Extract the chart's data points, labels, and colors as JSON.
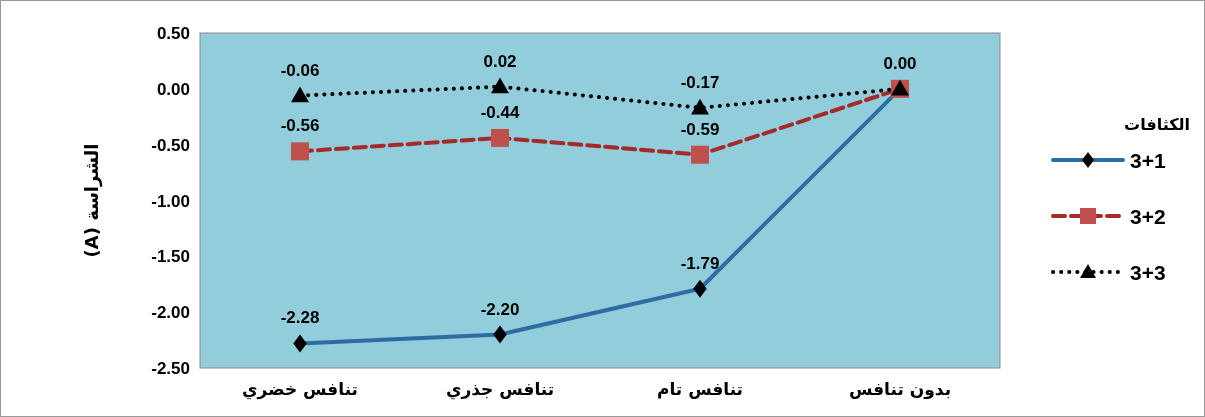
{
  "chart_data": {
    "type": "line",
    "ylabel": "الشراسة (A)",
    "legend_title": "الكثافات",
    "categories": [
      "تنافس خضري",
      "تنافس جذري",
      "تنافس تام",
      "بدون تنافس"
    ],
    "series": [
      {
        "name": "3+1",
        "color": "#2e6ca4",
        "marker": "diamond",
        "line_style": "solid",
        "values": [
          -2.28,
          -2.2,
          -1.79,
          0.0
        ],
        "value_labels": [
          "-2.28",
          "-2.20",
          "-1.79",
          null
        ]
      },
      {
        "name": "3+2",
        "color": "#a52a2a",
        "marker": "square",
        "line_style": "dashed",
        "values": [
          -0.56,
          -0.44,
          -0.59,
          0.0
        ],
        "value_labels": [
          "-0.56",
          "-0.44",
          "-0.59",
          null
        ]
      },
      {
        "name": "3+3",
        "color": "#000000",
        "marker": "triangle",
        "line_style": "dotted",
        "values": [
          -0.06,
          0.02,
          -0.17,
          0.0
        ],
        "value_labels": [
          "-0.06",
          "0.02",
          "-0.17",
          "0.00"
        ]
      }
    ],
    "ylim": [
      -2.5,
      0.5
    ],
    "yticks": [
      {
        "value": 0.5,
        "label": "0.50"
      },
      {
        "value": 0.0,
        "label": "0.00"
      },
      {
        "value": -0.5,
        "label": "-0.50"
      },
      {
        "value": -1.0,
        "label": "-1.00"
      },
      {
        "value": -1.5,
        "label": "-1.50"
      },
      {
        "value": -2.0,
        "label": "-2.00"
      },
      {
        "value": -2.5,
        "label": "-2.50"
      }
    ],
    "grid": false,
    "legend": "right"
  }
}
